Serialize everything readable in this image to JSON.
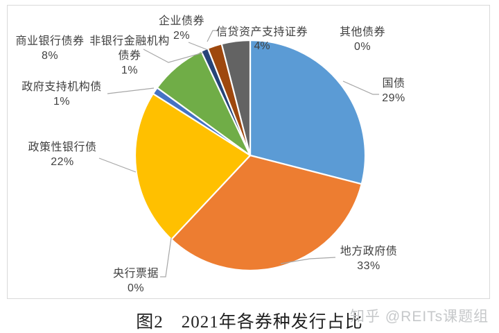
{
  "chart_data": {
    "type": "pie",
    "title": "图2　2021年各券种发行占比",
    "legend": "none",
    "start_angle_deg": 0,
    "direction": "clockwise",
    "data_labels": "outside, category name + percent, gray leader lines",
    "slices": [
      {
        "label": "国债",
        "value_pct": 29,
        "pct_label": "29%",
        "color": "#5B9BD5"
      },
      {
        "label": "地方政府债",
        "value_pct": 33,
        "pct_label": "33%",
        "color": "#ED7D31"
      },
      {
        "label": "央行票据",
        "value_pct": 0,
        "pct_label": "0%",
        "color": "#A5A5A5"
      },
      {
        "label": "政策性银行债",
        "value_pct": 22,
        "pct_label": "22%",
        "color": "#FFC000"
      },
      {
        "label": "政府支持机构债",
        "value_pct": 1,
        "pct_label": "1%",
        "color": "#4472C4"
      },
      {
        "label": "商业银行债券",
        "value_pct": 8,
        "pct_label": "8%",
        "color": "#70AD47"
      },
      {
        "label": "非银行金融机构债券",
        "value_pct": 1,
        "pct_label": "1%",
        "color": "#264478"
      },
      {
        "label": "企业债券",
        "value_pct": 2,
        "pct_label": "2%",
        "color": "#9E480E"
      },
      {
        "label": "信贷资产支持证券",
        "value_pct": 4,
        "pct_label": "4%",
        "color": "#636363"
      },
      {
        "label": "其他债券",
        "value_pct": 0,
        "pct_label": "0%",
        "color": "#997300"
      }
    ]
  },
  "caption": "图2　2021年各券种发行占比",
  "watermark": "知乎 @REITs课题组",
  "frame_border_color": "#D9D9D9",
  "leader_line_color": "#A6A6A6"
}
